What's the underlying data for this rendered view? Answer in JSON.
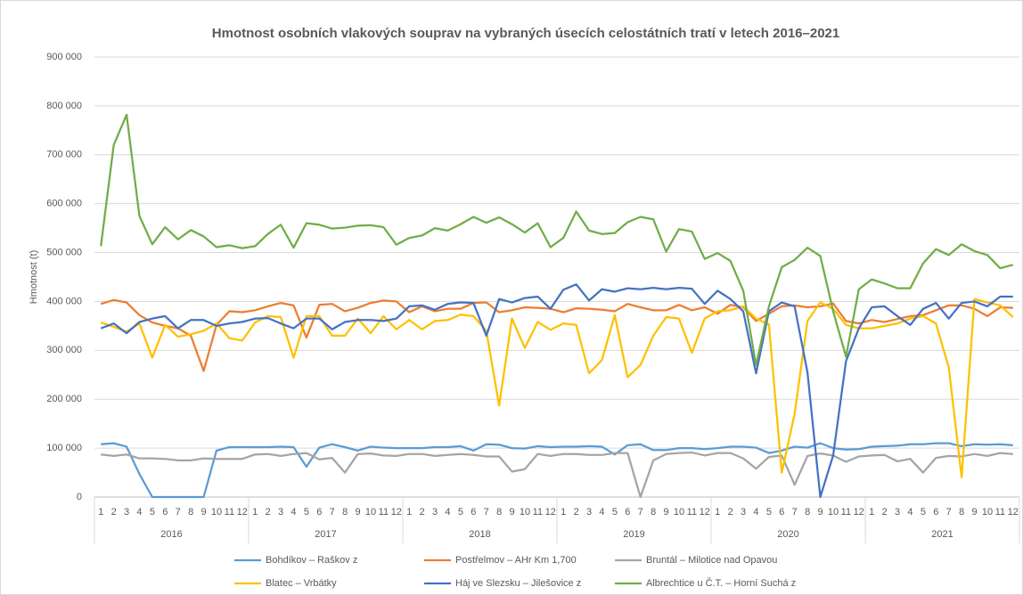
{
  "chart_data": {
    "type": "line",
    "title": "Hmotnost osobních vlakových souprav na vybraných úsecích celostátních tratí v letech 2016–2021",
    "y_label": "Hmotnost (t)",
    "categories": [
      "1",
      "2",
      "3",
      "4",
      "5",
      "6",
      "7",
      "8",
      "9",
      "10",
      "11",
      "12",
      "1",
      "2",
      "3",
      "4",
      "5",
      "6",
      "7",
      "8",
      "9",
      "10",
      "11",
      "12",
      "1",
      "2",
      "3",
      "4",
      "5",
      "6",
      "7",
      "8",
      "9",
      "10",
      "11",
      "12",
      "1",
      "2",
      "3",
      "4",
      "5",
      "6",
      "7",
      "8",
      "9",
      "10",
      "11",
      "12",
      "1",
      "2",
      "3",
      "4",
      "5",
      "6",
      "7",
      "8",
      "9",
      "10",
      "11",
      "12",
      "1",
      "2",
      "3",
      "4",
      "5",
      "6",
      "7",
      "8",
      "9",
      "10",
      "11",
      "12"
    ],
    "year_groups": [
      "2016",
      "2017",
      "2018",
      "2019",
      "2020",
      "2021"
    ],
    "ylim": [
      0,
      900000
    ],
    "yticks": [
      0,
      {
        "value": 100000,
        "label": "100 000"
      },
      {
        "value": 200000,
        "label": "200 000"
      },
      {
        "value": 300000,
        "label": "300 000"
      },
      {
        "value": 400000,
        "label": "400 000"
      },
      {
        "value": 500000,
        "label": "500 000"
      },
      {
        "value": 600000,
        "label": "600 000"
      },
      {
        "value": 700000,
        "label": "700 000"
      },
      {
        "value": 800000,
        "label": "800 000"
      },
      {
        "value": 900000,
        "label": "900 000"
      }
    ],
    "grid": true,
    "legend": "bottom",
    "series": [
      {
        "name": "Bohdíkov – Raškov z",
        "color": "#5b9bd5",
        "values": [
          108000,
          110000,
          103000,
          47000,
          0,
          0,
          0,
          0,
          0,
          95000,
          102000,
          102000,
          102000,
          102000,
          103000,
          102000,
          62000,
          101000,
          108000,
          102000,
          95000,
          103000,
          101000,
          100000,
          100000,
          100000,
          102000,
          102000,
          104000,
          95000,
          108000,
          107000,
          100000,
          99000,
          104000,
          102000,
          103000,
          103000,
          104000,
          103000,
          87000,
          106000,
          108000,
          96000,
          96000,
          100000,
          100000,
          98000,
          100000,
          103000,
          103000,
          101000,
          90000,
          95000,
          103000,
          101000,
          110000,
          100000,
          97000,
          98000,
          103000,
          104000,
          105000,
          108000,
          108000,
          110000,
          110000,
          104000,
          108000,
          107000,
          108000,
          106000
        ]
      },
      {
        "name": "Postřelmov – AHr Km 1,700",
        "color": "#ed7d31",
        "values": [
          395000,
          403000,
          398000,
          372000,
          357000,
          350000,
          345000,
          330000,
          258000,
          352000,
          380000,
          378000,
          382000,
          390000,
          397000,
          392000,
          326000,
          393000,
          395000,
          380000,
          387000,
          397000,
          402000,
          400000,
          378000,
          390000,
          380000,
          385000,
          385000,
          397000,
          398000,
          378000,
          382000,
          388000,
          387000,
          385000,
          378000,
          386000,
          385000,
          383000,
          380000,
          395000,
          388000,
          382000,
          382000,
          393000,
          382000,
          388000,
          375000,
          393000,
          388000,
          360000,
          375000,
          390000,
          392000,
          388000,
          390000,
          396000,
          360000,
          355000,
          362000,
          358000,
          364000,
          370000,
          372000,
          382000,
          392000,
          392000,
          385000,
          370000,
          388000,
          387000
        ]
      },
      {
        "name": "Bruntál – Milotice nad Opavou",
        "color": "#a5a5a5",
        "values": [
          87000,
          84000,
          87000,
          79000,
          79000,
          78000,
          75000,
          75000,
          79000,
          78000,
          78000,
          78000,
          87000,
          88000,
          84000,
          88000,
          90000,
          77000,
          80000,
          50000,
          88000,
          89000,
          85000,
          84000,
          88000,
          88000,
          84000,
          86000,
          88000,
          86000,
          83000,
          83000,
          52000,
          57000,
          88000,
          84000,
          88000,
          88000,
          86000,
          86000,
          90000,
          90000,
          0,
          75000,
          88000,
          90000,
          91000,
          85000,
          90000,
          90000,
          79000,
          58000,
          82000,
          85000,
          25000,
          84000,
          89000,
          85000,
          72000,
          83000,
          85000,
          86000,
          73000,
          78000,
          50000,
          80000,
          84000,
          83000,
          88000,
          84000,
          90000,
          88000
        ]
      },
      {
        "name": "Blatec – Vrbátky",
        "color": "#ffc000",
        "values": [
          357000,
          348000,
          338000,
          355000,
          285000,
          352000,
          328000,
          333000,
          340000,
          355000,
          325000,
          320000,
          357000,
          370000,
          368000,
          285000,
          370000,
          370000,
          330000,
          330000,
          365000,
          335000,
          370000,
          343000,
          362000,
          343000,
          360000,
          362000,
          373000,
          370000,
          340000,
          187000,
          365000,
          305000,
          358000,
          342000,
          355000,
          352000,
          253000,
          280000,
          372000,
          245000,
          270000,
          330000,
          368000,
          365000,
          295000,
          365000,
          380000,
          382000,
          390000,
          365000,
          353000,
          50000,
          170000,
          360000,
          398000,
          385000,
          352000,
          345000,
          345000,
          350000,
          355000,
          365000,
          370000,
          355000,
          265000,
          40000,
          405000,
          398000,
          392000,
          368000
        ]
      },
      {
        "name": "Háj ve Slezsku – Jilešovice z",
        "color": "#4472c4",
        "values": [
          345000,
          355000,
          335000,
          358000,
          365000,
          370000,
          345000,
          362000,
          362000,
          350000,
          355000,
          358000,
          365000,
          366000,
          355000,
          345000,
          365000,
          365000,
          343000,
          358000,
          362000,
          362000,
          360000,
          365000,
          390000,
          392000,
          383000,
          395000,
          398000,
          397000,
          330000,
          405000,
          398000,
          407000,
          410000,
          385000,
          424000,
          435000,
          402000,
          425000,
          420000,
          427000,
          425000,
          428000,
          425000,
          428000,
          426000,
          395000,
          422000,
          405000,
          380000,
          253000,
          380000,
          398000,
          390000,
          255000,
          0,
          85000,
          278000,
          345000,
          388000,
          390000,
          370000,
          352000,
          385000,
          397000,
          365000,
          397000,
          400000,
          390000,
          410000,
          410000
        ]
      },
      {
        "name": "Albrechtice u Č.T. – Horní Suchá z",
        "color": "#70ad47",
        "values": [
          513000,
          720000,
          782000,
          575000,
          517000,
          552000,
          527000,
          546000,
          533000,
          511000,
          515000,
          509000,
          513000,
          538000,
          557000,
          510000,
          560000,
          557000,
          549000,
          551000,
          555000,
          556000,
          552000,
          516000,
          530000,
          535000,
          550000,
          545000,
          558000,
          573000,
          561000,
          572000,
          558000,
          541000,
          560000,
          511000,
          530000,
          584000,
          545000,
          538000,
          540000,
          562000,
          573000,
          568000,
          502000,
          548000,
          543000,
          487000,
          499000,
          483000,
          422000,
          270000,
          390000,
          470000,
          485000,
          510000,
          493000,
          380000,
          287000,
          425000,
          445000,
          437000,
          427000,
          427000,
          478000,
          507000,
          495000,
          517000,
          503000,
          495000,
          468000,
          475000
        ]
      }
    ]
  }
}
